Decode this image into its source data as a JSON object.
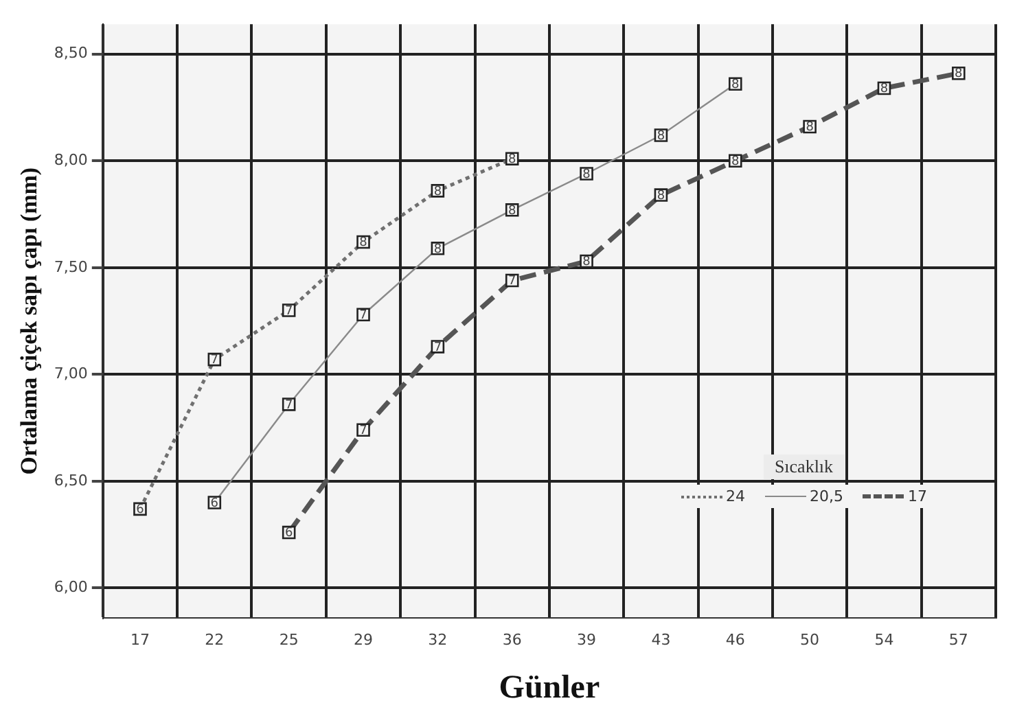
{
  "chart_data": {
    "type": "line",
    "xlabel": "Günler",
    "ylabel": "Ortalama çiçek sapı çapı (mm)",
    "legend_title": "Sıcaklık",
    "categories": [
      "17",
      "22",
      "25",
      "29",
      "32",
      "36",
      "39",
      "43",
      "46",
      "50",
      "54",
      "57"
    ],
    "series": [
      {
        "name": "24",
        "color": "#707070",
        "line_style": "dotted",
        "values": [
          6.37,
          7.07,
          7.3,
          7.62,
          7.86,
          8.01,
          null,
          null,
          null,
          null,
          null,
          null
        ],
        "value_labels": [
          "6",
          "7",
          "7",
          "8",
          "8",
          "8",
          null,
          null,
          null,
          null,
          null,
          null
        ]
      },
      {
        "name": "20,5",
        "color": "#8a8a8a",
        "line_style": "solid",
        "values": [
          null,
          6.4,
          6.86,
          7.28,
          7.59,
          7.77,
          7.94,
          8.12,
          8.36,
          null,
          null,
          null
        ],
        "value_labels": [
          null,
          "6",
          "7",
          "7",
          "8",
          "8",
          "8",
          "8",
          "8",
          null,
          null,
          null
        ]
      },
      {
        "name": "17",
        "color": "#555555",
        "line_style": "dashed",
        "values": [
          null,
          null,
          6.26,
          6.74,
          7.13,
          7.44,
          7.53,
          7.84,
          8.0,
          8.16,
          8.34,
          8.41
        ],
        "value_labels": [
          null,
          null,
          "6",
          "7",
          "7",
          "7",
          "8",
          "8",
          "8",
          "8",
          "8",
          "8"
        ]
      }
    ],
    "ylim": [
      5.86,
      8.64
    ],
    "yticks": [
      {
        "value": 6,
        "label": "6,00"
      },
      {
        "value": 6.5,
        "label": "6,50"
      },
      {
        "value": 7,
        "label": "7,00"
      },
      {
        "value": 7.5,
        "label": "7,50"
      },
      {
        "value": 8,
        "label": "8,00"
      },
      {
        "value": 8.5,
        "label": "8,50"
      }
    ],
    "grid": true,
    "legend": "bottom right",
    "marker": "square"
  }
}
